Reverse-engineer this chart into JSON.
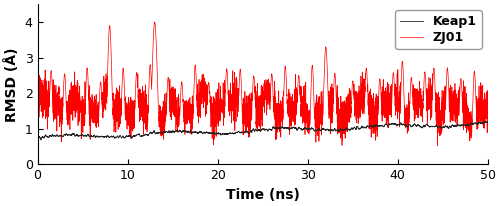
{
  "title": "",
  "xlabel": "Time (ns)",
  "ylabel": "RMSD (Å)",
  "xlim": [
    0,
    50
  ],
  "ylim": [
    0,
    4.5
  ],
  "yticks": [
    0,
    1,
    2,
    3,
    4
  ],
  "xticks": [
    0,
    10,
    20,
    30,
    40,
    50
  ],
  "keap1_color": "#222222",
  "zj01_color": "#ff0000",
  "keap1_label": "Keap1",
  "zj01_label": "ZJ01",
  "keap1_linewidth": 0.6,
  "zj01_linewidth": 0.5,
  "legend_fontsize": 9,
  "axis_fontsize": 10,
  "tick_fontsize": 9,
  "seed": 12345,
  "n_points": 5000,
  "keap1_base": 0.95,
  "keap1_noise": 0.08,
  "zj01_base": 1.65,
  "zj01_noise": 0.28,
  "background_color": "#ffffff"
}
